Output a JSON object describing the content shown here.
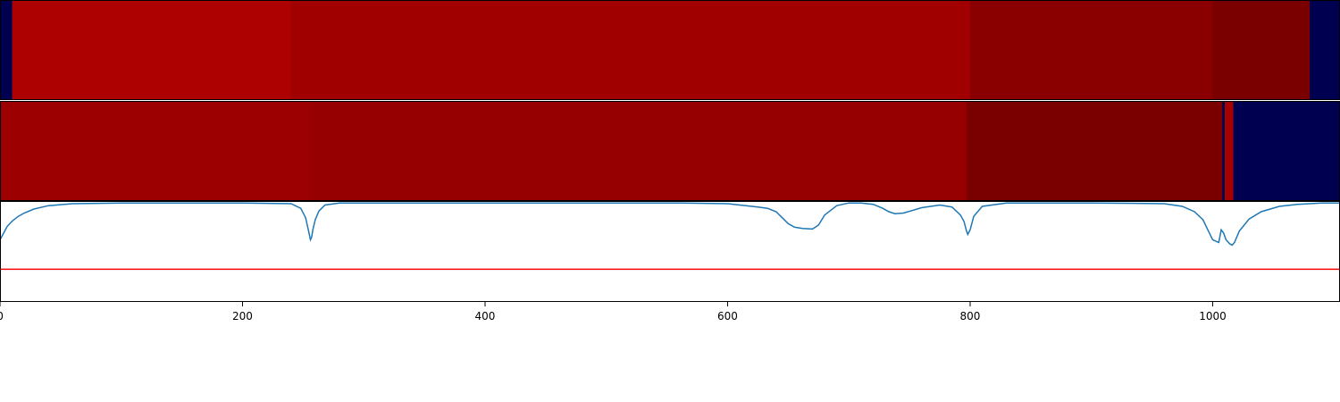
{
  "chart_data": {
    "type": "area",
    "description_free": true,
    "xlim": [
      0,
      1105
    ],
    "xticks": [
      0,
      200,
      400,
      600,
      800,
      1000
    ],
    "xtick_labels": [
      "0",
      "200",
      "400",
      "600",
      "800",
      "1000"
    ],
    "grid": false,
    "colors": {
      "line": "#1f77b4",
      "threshold": "#ff0000",
      "low": "#000050",
      "mid_red": "#a00000",
      "dark_red": "#7a0000",
      "axis": "#000000"
    },
    "bands": [
      {
        "segments": [
          {
            "start": 0,
            "end": 10,
            "color": "#000050"
          },
          {
            "start": 10,
            "end": 240,
            "color": "#ad0000"
          },
          {
            "start": 240,
            "end": 800,
            "color": "#a00000"
          },
          {
            "start": 800,
            "end": 1000,
            "color": "#8a0000"
          },
          {
            "start": 1000,
            "end": 1080,
            "color": "#7a0000"
          },
          {
            "start": 1080,
            "end": 1105,
            "color": "#000050"
          }
        ]
      },
      {
        "segments": [
          {
            "start": 0,
            "end": 256,
            "color": "#9d0000"
          },
          {
            "start": 256,
            "end": 797,
            "color": "#960000"
          },
          {
            "start": 797,
            "end": 1008,
            "color": "#7a0000"
          },
          {
            "start": 1008,
            "end": 1010,
            "color": "#000050"
          },
          {
            "start": 1010,
            "end": 1017,
            "color": "#a60000"
          },
          {
            "start": 1017,
            "end": 1105,
            "color": "#000050"
          }
        ]
      }
    ],
    "series": [
      {
        "x": [
          0,
          3,
          6,
          10,
          15,
          20,
          28,
          40,
          60,
          100,
          200,
          240,
          248,
          252,
          254,
          256,
          257,
          258,
          260,
          263,
          268,
          280,
          400,
          560,
          600,
          615,
          625,
          633,
          640,
          645,
          650,
          655,
          662,
          670,
          675,
          680,
          690,
          700,
          710,
          720,
          728,
          733,
          738,
          745,
          760,
          775,
          785,
          792,
          795,
          797,
          798,
          800,
          803,
          810,
          830,
          900,
          960,
          975,
          985,
          992,
          996,
          1000,
          1005,
          1007,
          1009,
          1011,
          1014,
          1016,
          1018,
          1022,
          1030,
          1040,
          1055,
          1070,
          1090,
          1105
        ],
        "y": [
          0.45,
          0.55,
          0.65,
          0.73,
          0.8,
          0.85,
          0.91,
          0.96,
          0.99,
          1.0,
          1.0,
          0.99,
          0.92,
          0.78,
          0.62,
          0.45,
          0.49,
          0.6,
          0.75,
          0.88,
          0.97,
          1.0,
          1.0,
          1.0,
          0.99,
          0.96,
          0.94,
          0.92,
          0.87,
          0.78,
          0.69,
          0.64,
          0.62,
          0.61,
          0.67,
          0.82,
          0.96,
          1.0,
          1.0,
          0.98,
          0.92,
          0.87,
          0.84,
          0.85,
          0.93,
          0.97,
          0.94,
          0.82,
          0.72,
          0.58,
          0.53,
          0.6,
          0.8,
          0.95,
          1.0,
          1.0,
          0.99,
          0.95,
          0.87,
          0.75,
          0.6,
          0.45,
          0.41,
          0.6,
          0.55,
          0.45,
          0.39,
          0.37,
          0.41,
          0.58,
          0.76,
          0.87,
          0.95,
          0.98,
          1.0,
          1.0
        ]
      }
    ],
    "threshold_y": 0.01,
    "ylim": [
      -0.48,
      1.03
    ]
  }
}
